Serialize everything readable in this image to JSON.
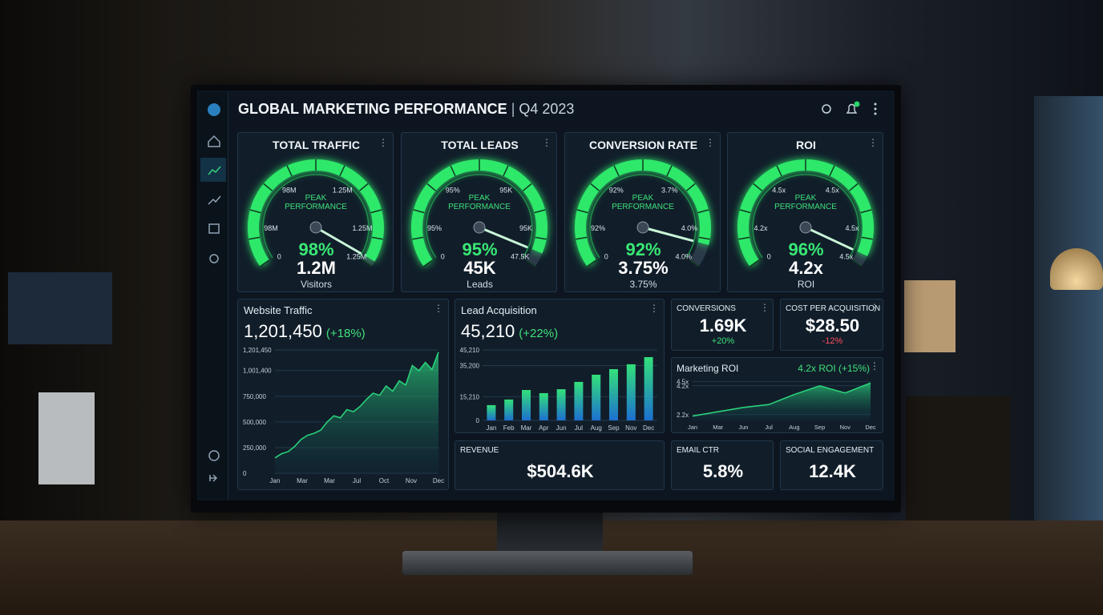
{
  "header": {
    "title": "GLOBAL MARKETING PERFORMANCE",
    "separator": "|",
    "period": "Q4 2023"
  },
  "gauges": [
    {
      "title": "TOTAL TRAFFIC",
      "scale_labels": [
        "0",
        "98M",
        "98M",
        "1.25M",
        "1.25M",
        "1.25M"
      ],
      "peak": "PEAK PERFORMANCE",
      "percent": 98,
      "percent_label": "98%",
      "value": "1.2M",
      "unit": "Visitors"
    },
    {
      "title": "TOTAL LEADS",
      "scale_labels": [
        "0",
        "95%",
        "95%",
        "95K",
        "95K",
        "47.5K"
      ],
      "peak": "PEAK PERFORMANCE",
      "percent": 95,
      "percent_label": "95%",
      "value": "45K",
      "unit": "Leads"
    },
    {
      "title": "CONVERSION RATE",
      "scale_labels": [
        "0",
        "92%",
        "92%",
        "3.7%",
        "4.0%",
        "4.0%"
      ],
      "peak": "PEAK PERFORMANCE",
      "percent": 92,
      "percent_label": "92%",
      "value": "3.75%",
      "unit": "3.75%"
    },
    {
      "title": "ROI",
      "scale_labels": [
        "0",
        "4.2x",
        "4.5x",
        "4.5x",
        "4.5x",
        "4.5x"
      ],
      "peak": "PEAK PERFORMANCE",
      "percent": 96,
      "percent_label": "96%",
      "value": "4.2x",
      "unit": "ROI"
    }
  ],
  "traffic": {
    "title": "Website Traffic",
    "value": "1,201,450",
    "change": "(+18%)",
    "ylim": [
      0,
      1201450
    ],
    "yticks": [
      0,
      {
        "value": 250000,
        "label": "250,000"
      },
      {
        "value": 500000,
        "label": "500,000"
      },
      {
        "value": 750000,
        "label": "750,000"
      },
      {
        "value": 1001400,
        "label": "1,001,400"
      },
      {
        "value": 1201450,
        "label": "1,201,450"
      }
    ],
    "xlabels": [
      "Jan",
      "Mar",
      "Mar",
      "Jul",
      "Oct",
      "Nov",
      "Dec"
    ],
    "values": [
      150000,
      190000,
      210000,
      260000,
      330000,
      370000,
      390000,
      420000,
      500000,
      560000,
      540000,
      620000,
      600000,
      650000,
      720000,
      780000,
      760000,
      850000,
      800000,
      900000,
      860000,
      1050000,
      1000000,
      1080000,
      1010000,
      1180000
    ]
  },
  "leads": {
    "title": "Lead Acquisition",
    "value": "45,210",
    "change": "(+22%)",
    "ylim": [
      0,
      45210
    ],
    "yticks": [
      0,
      {
        "value": 15210,
        "label": "15,210"
      },
      {
        "value": 35200,
        "label": "35,200"
      },
      {
        "value": 45210,
        "label": "45,210"
      }
    ],
    "categories": [
      "Jan",
      "Feb",
      "Mar",
      "Apr",
      "Jun",
      "Jul",
      "Aug",
      "Sep",
      "Nov",
      "Dec"
    ],
    "values": [
      9800,
      13400,
      19500,
      17500,
      20000,
      24700,
      29300,
      32900,
      36000,
      40600
    ]
  },
  "kpis": [
    {
      "title": "CONVERSIONS",
      "value": "1.69K",
      "change": "+20%"
    },
    {
      "title": "COST PER ACQUISITION",
      "value": "$28.50",
      "change": "-12%"
    }
  ],
  "roi": {
    "title": "Marketing ROI",
    "summary": "4.2x ROI (+15%)",
    "ylim": [
      1.8,
      4.8
    ],
    "yticks": [
      {
        "value": 2.2,
        "label": "2.2x"
      },
      {
        "value": 4.2,
        "label": "4.2x"
      },
      {
        "value": 4.5,
        "label": "4.5x"
      }
    ],
    "xlabels": [
      "Jan",
      "Mar",
      "Jun",
      "Jul",
      "Aug",
      "Sep",
      "Nov",
      "Dec"
    ],
    "values": [
      2.1,
      2.4,
      2.7,
      2.9,
      3.6,
      4.2,
      3.7,
      4.4
    ]
  },
  "bottom": [
    {
      "title": "REVENUE",
      "value": "$504.6K"
    },
    {
      "title": "EMAIL CTR",
      "value": "5.8%"
    },
    {
      "title": "SOCIAL ENGAGEMENT",
      "value": "12.4K"
    }
  ]
}
